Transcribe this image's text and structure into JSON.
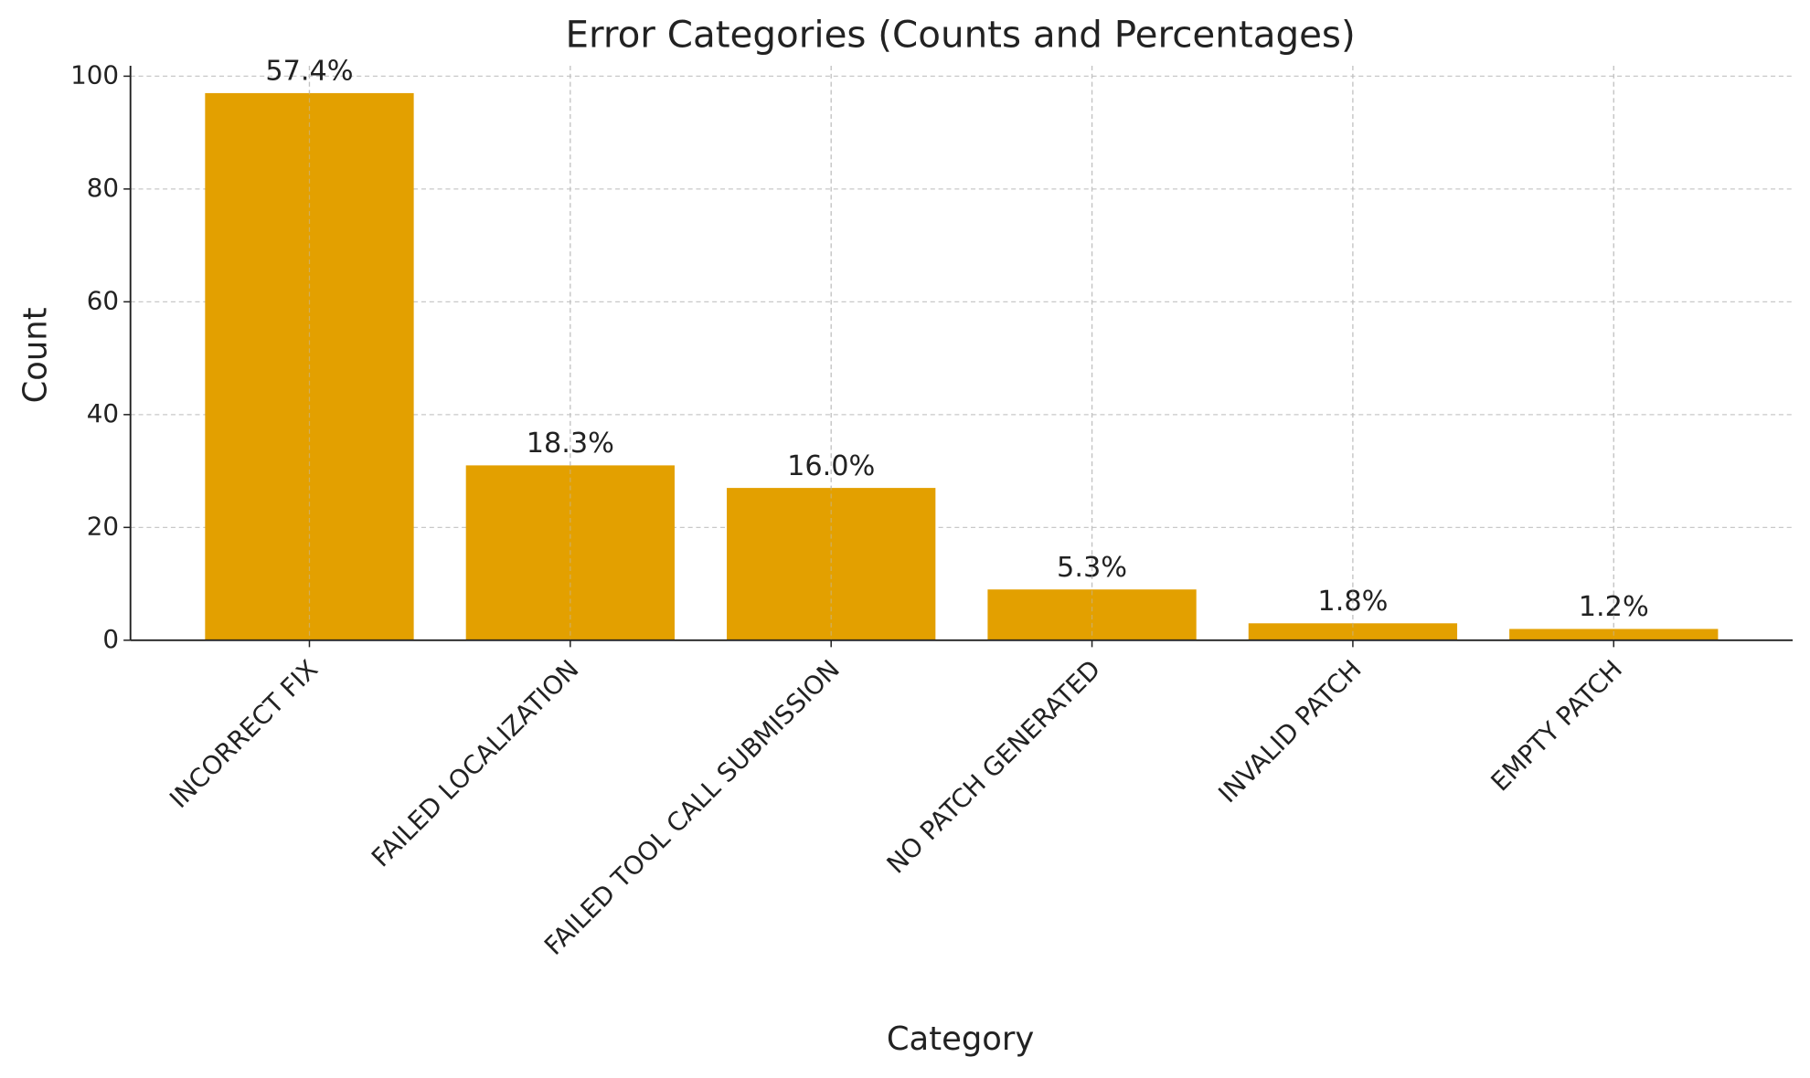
{
  "chart_data": {
    "type": "bar",
    "title": "Error Categories (Counts and Percentages)",
    "x_label": "Category",
    "y_label": "Count",
    "categories": [
      "INCORRECT FIX",
      "FAILED LOCALIZATION",
      "FAILED TOOL CALL SUBMISSION",
      "NO PATCH GENERATED",
      "INVALID PATCH",
      "EMPTY PATCH"
    ],
    "values": [
      97,
      31,
      27,
      9,
      3,
      2
    ],
    "bar_labels": [
      "57.4%",
      "18.3%",
      "16.0%",
      "5.3%",
      "1.8%",
      "1.2%"
    ],
    "color": "#e3a000",
    "ylim": [
      0,
      101.85
    ],
    "yticks": [
      0,
      20,
      40,
      60,
      80,
      100
    ],
    "grid": true
  }
}
